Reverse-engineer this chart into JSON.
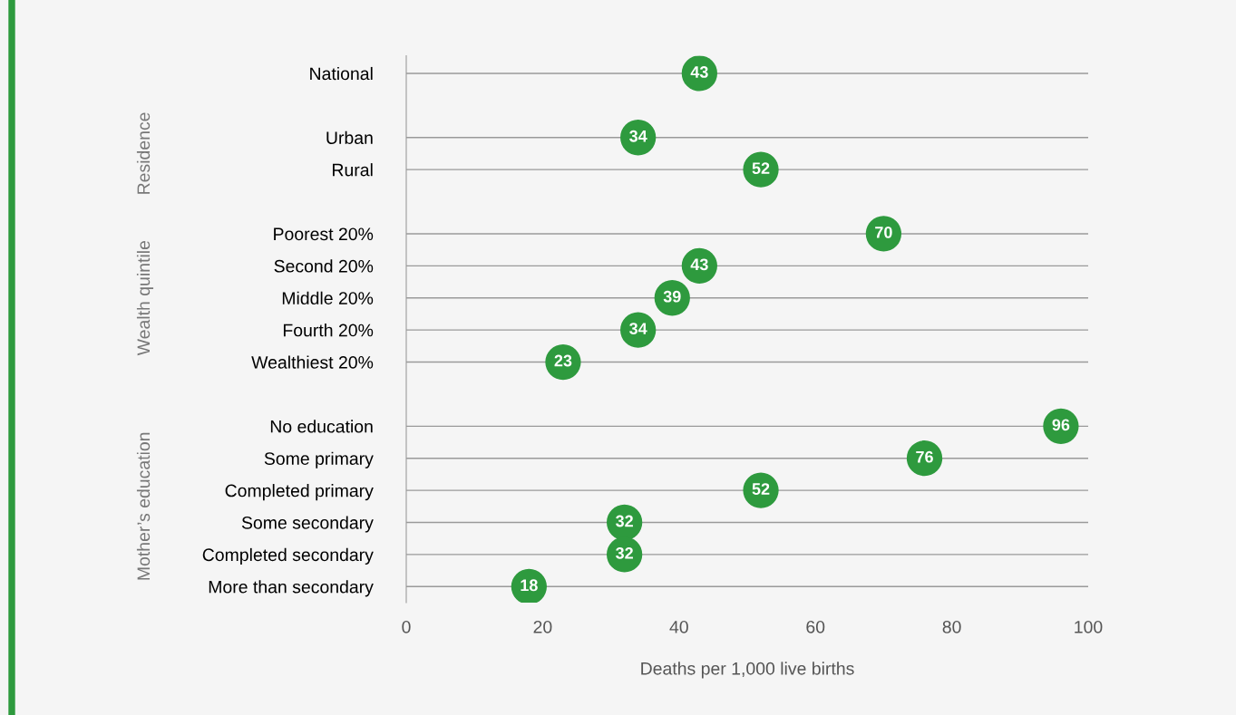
{
  "chart_data": {
    "type": "scatter",
    "orientation": "horizontal",
    "xlabel": "Deaths per 1,000 live births",
    "categories": [
      "National",
      null,
      "Urban",
      "Rural",
      null,
      "Poorest 20%",
      "Second 20%",
      "Middle 20%",
      "Fourth 20%",
      "Wealthiest 20%",
      null,
      "No education",
      "Some primary",
      "Completed primary",
      "Some secondary",
      "Completed secondary",
      "More than secondary"
    ],
    "values": [
      43,
      null,
      34,
      52,
      null,
      70,
      43,
      39,
      34,
      23,
      null,
      96,
      76,
      52,
      32,
      32,
      18
    ],
    "color": "#2e9a3e",
    "marker": "circle",
    "data_labels": true,
    "grid": "y",
    "xlim": [
      0,
      100
    ],
    "xticks": [
      0,
      20,
      40,
      60,
      80,
      100
    ],
    "annotations": [
      "Residence",
      "Wealth quintile",
      "Mother’s education"
    ]
  }
}
